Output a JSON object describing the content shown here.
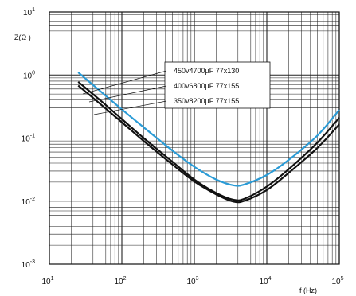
{
  "chart_data": {
    "type": "line",
    "title": "",
    "xlabel": "f (Hz)",
    "ylabel": "Z(Ω )",
    "xscale": "log",
    "yscale": "log",
    "xlim": [
      10,
      100000
    ],
    "ylim": [
      0.001,
      10
    ],
    "grid": true,
    "x_ticks": [
      {
        "value": 10,
        "mantissa": "10",
        "exp": "1"
      },
      {
        "value": 100,
        "mantissa": "10",
        "exp": "2"
      },
      {
        "value": 1000,
        "mantissa": "10",
        "exp": "3"
      },
      {
        "value": 10000,
        "mantissa": "10",
        "exp": "4"
      },
      {
        "value": 100000,
        "mantissa": "10",
        "exp": "5"
      }
    ],
    "y_ticks": [
      {
        "value": 10,
        "mantissa": "10",
        "exp": "1"
      },
      {
        "value": 1,
        "mantissa": "10",
        "exp": "0"
      },
      {
        "value": 0.1,
        "mantissa": "10",
        "exp": "-1"
      },
      {
        "value": 0.01,
        "mantissa": "10",
        "exp": "-2"
      },
      {
        "value": 0.001,
        "mantissa": "10",
        "exp": "-3"
      }
    ],
    "series": [
      {
        "name": "450v4700µF 77x130",
        "color": "#2a9bd6",
        "x": [
          25,
          50,
          100,
          200,
          500,
          1000,
          2000,
          3500,
          5000,
          10000,
          20000,
          50000,
          100000
        ],
        "y": [
          1.1,
          0.56,
          0.285,
          0.148,
          0.063,
          0.035,
          0.022,
          0.0178,
          0.0185,
          0.026,
          0.045,
          0.11,
          0.28
        ]
      },
      {
        "name": "400v6800µF 77x155",
        "color": "#111111",
        "x": [
          25,
          50,
          100,
          200,
          500,
          1000,
          2000,
          3500,
          5000,
          10000,
          20000,
          50000,
          100000
        ],
        "y": [
          0.78,
          0.4,
          0.2,
          0.1,
          0.042,
          0.022,
          0.0135,
          0.0105,
          0.011,
          0.017,
          0.032,
          0.085,
          0.21
        ]
      },
      {
        "name": "350v8200µF 77x155",
        "color": "#111111",
        "x": [
          25,
          50,
          100,
          200,
          500,
          1000,
          2000,
          3500,
          5000,
          10000,
          20000,
          50000,
          100000
        ],
        "y": [
          0.68,
          0.35,
          0.178,
          0.09,
          0.038,
          0.0205,
          0.0128,
          0.0098,
          0.0102,
          0.015,
          0.028,
          0.07,
          0.165
        ]
      }
    ],
    "legend": {
      "placement": "top-right",
      "entries": [
        "450v4700µF 77x130",
        "400v6800µF 77x155",
        "350v8200µF 77x155"
      ]
    }
  }
}
